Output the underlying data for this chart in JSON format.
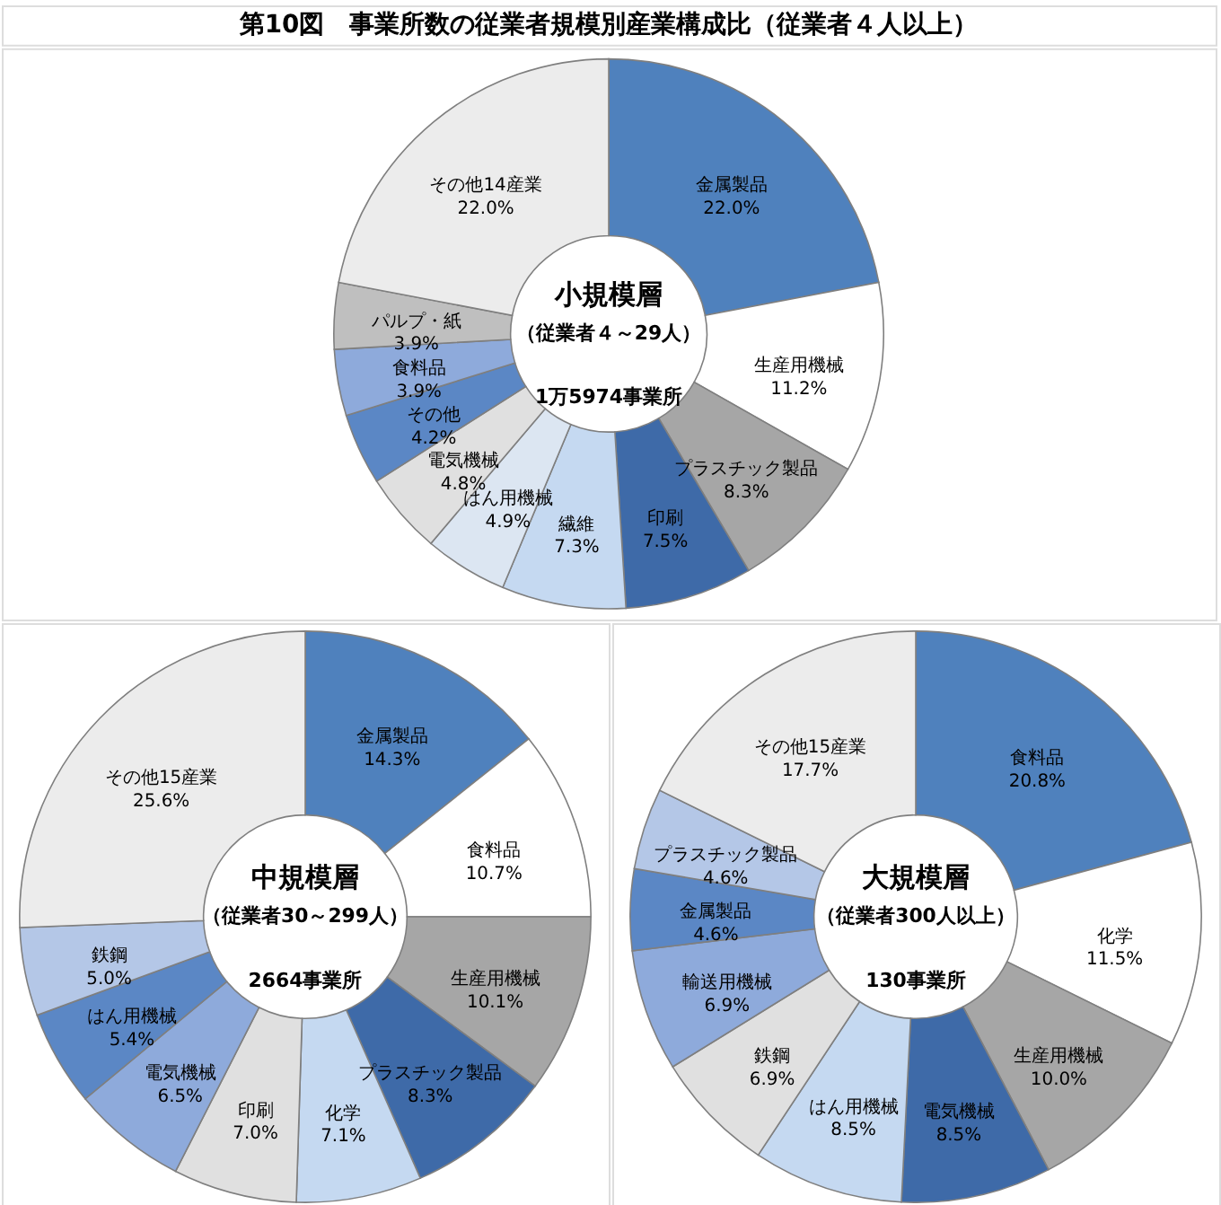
{
  "chart_data": [
    {
      "type": "other",
      "title": "第10図　事業所数の従業者規模別産業構成比（従業者４人以上）"
    },
    {
      "type": "donut",
      "title": "小規模層",
      "subtitle": "（従業者４～29人）",
      "annotations": [
        "1万5974事業所"
      ],
      "categories": [
        "金属製品",
        "生産用機械",
        "プラスチック製品",
        "印刷",
        "繊維",
        "はん用機械",
        "電気機械",
        "その他",
        "食料品",
        "パルプ・紙",
        "その他14産業"
      ],
      "values": [
        22.0,
        11.2,
        8.3,
        7.5,
        7.3,
        4.9,
        4.8,
        4.2,
        3.9,
        3.9,
        22.0
      ],
      "value_labels": [
        "22.0%",
        "11.2%",
        "8.3%",
        "7.5%",
        "7.3%",
        "4.9%",
        "4.8%",
        "4.2%",
        "3.9%",
        "3.9%",
        "22.0%"
      ],
      "colors": [
        "#4f81bd",
        "#ffffff",
        "#a6a6a6",
        "#3e6aa8",
        "#c5d9f1",
        "#dce6f2",
        "#e0e0e0",
        "#5b87c5",
        "#8eaadb",
        "#bfbfbf",
        "#ececec"
      ]
    },
    {
      "type": "donut",
      "title": "中規模層",
      "subtitle": "（従業者30～299人）",
      "annotations": [
        "2664事業所"
      ],
      "categories": [
        "金属製品",
        "食料品",
        "生産用機械",
        "プラスチック製品",
        "化学",
        "印刷",
        "電気機械",
        "はん用機械",
        "鉄鋼",
        "その他15産業"
      ],
      "values": [
        14.3,
        10.7,
        10.1,
        8.3,
        7.1,
        7.0,
        6.5,
        5.4,
        5.0,
        25.6
      ],
      "value_labels": [
        "14.3%",
        "10.7%",
        "10.1%",
        "8.3%",
        "7.1%",
        "7.0%",
        "6.5%",
        "5.4%",
        "5.0%",
        "25.6%"
      ],
      "colors": [
        "#4f81bd",
        "#ffffff",
        "#a6a6a6",
        "#3e6aa8",
        "#c5d9f1",
        "#e0e0e0",
        "#8eaadb",
        "#5b87c5",
        "#b4c7e7",
        "#ececec"
      ]
    },
    {
      "type": "donut",
      "title": "大規模層",
      "subtitle": "（従業者300人以上）",
      "annotations": [
        "130事業所"
      ],
      "categories": [
        "食料品",
        "化学",
        "生産用機械",
        "電気機械",
        "はん用機械",
        "鉄鋼",
        "輸送用機械",
        "金属製品",
        "プラスチック製品",
        "その他15産業"
      ],
      "values": [
        20.8,
        11.5,
        10.0,
        8.5,
        8.5,
        6.9,
        6.9,
        4.6,
        4.6,
        17.7
      ],
      "value_labels": [
        "20.8%",
        "11.5%",
        "10.0%",
        "8.5%",
        "8.5%",
        "6.9%",
        "6.9%",
        "4.6%",
        "4.6%",
        "17.7%"
      ],
      "colors": [
        "#4f81bd",
        "#ffffff",
        "#a6a6a6",
        "#3e6aa8",
        "#c5d9f1",
        "#e0e0e0",
        "#8eaadb",
        "#5b87c5",
        "#b4c7e7",
        "#ececec"
      ]
    }
  ]
}
